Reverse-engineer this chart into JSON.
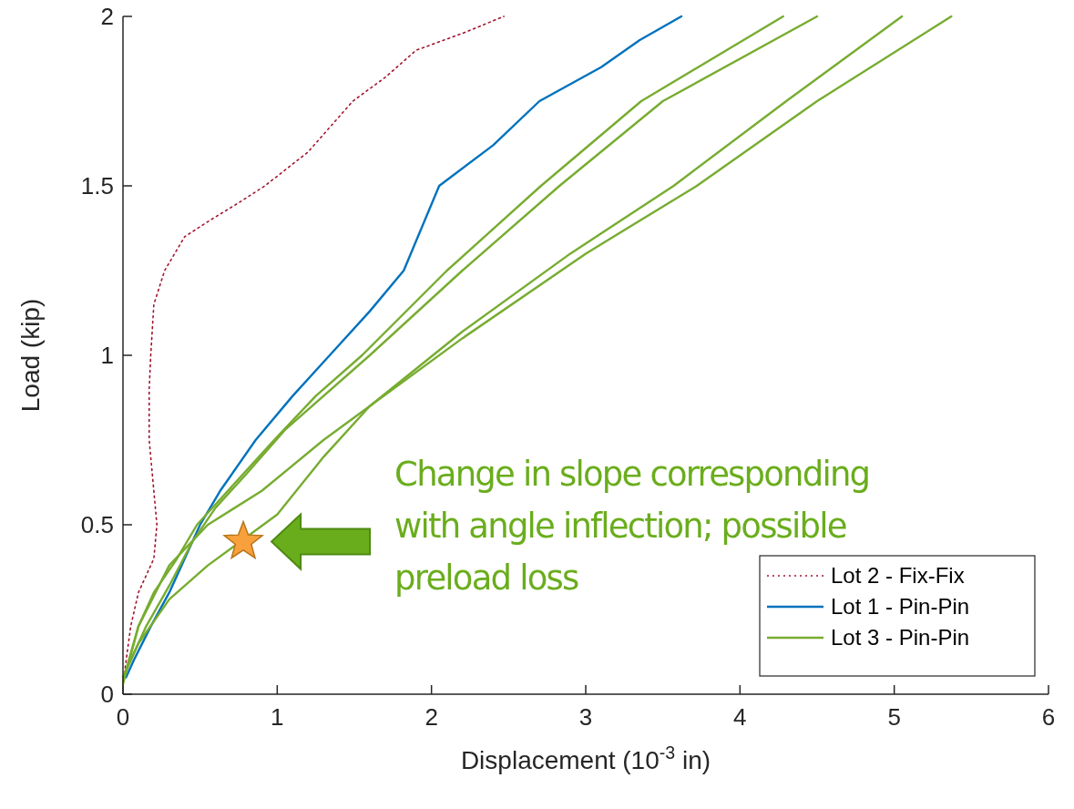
{
  "chart_data": {
    "type": "line",
    "xlabel": "Displacement (10$^{-3}$ in)",
    "ylabel": "Load (kip)",
    "xlim": [
      0,
      6
    ],
    "ylim": [
      0,
      2
    ],
    "xticks": [
      0,
      1,
      2,
      3,
      4,
      5,
      6
    ],
    "yticks": [
      0,
      0.5,
      1,
      1.5,
      2
    ],
    "grid": false,
    "legend": "bottom right",
    "series": [
      {
        "name": "Lot 2 - Fix-Fix",
        "color": "#a2142f",
        "line_style": "dotted",
        "x": [
          0,
          0.05,
          0.1,
          0.2,
          0.22,
          0.2,
          0.17,
          0.17,
          0.18,
          0.2,
          0.27,
          0.4,
          0.57,
          0.75,
          0.92,
          1.2,
          1.49,
          1.7,
          1.9,
          2.2,
          2.47
        ],
        "values": [
          0.03,
          0.2,
          0.3,
          0.4,
          0.5,
          0.6,
          0.75,
          0.9,
          1.0,
          1.15,
          1.25,
          1.35,
          1.4,
          1.45,
          1.5,
          1.6,
          1.75,
          1.82,
          1.9,
          1.95,
          2.0
        ]
      },
      {
        "name": "Lot 1 - Pin-Pin",
        "color": "#0072bd",
        "line_style": "solid",
        "x": [
          0.02,
          0.07,
          0.18,
          0.3,
          0.4,
          0.5,
          0.63,
          0.86,
          1.1,
          1.34,
          1.6,
          1.82,
          2.05,
          2.4,
          2.7,
          3.1,
          3.35,
          3.62
        ],
        "values": [
          0.05,
          0.1,
          0.2,
          0.3,
          0.4,
          0.5,
          0.6,
          0.75,
          0.88,
          1.0,
          1.13,
          1.25,
          1.5,
          1.62,
          1.75,
          1.85,
          1.93,
          2.0
        ]
      },
      {
        "name": "Lot 3 - Pin-Pin",
        "color": "#77ac30",
        "line_style": "solid",
        "x": [
          0,
          0.1,
          0.2,
          0.35,
          0.48,
          0.68,
          0.98,
          1.25,
          1.55,
          2.1,
          2.71,
          3.36,
          4.28
        ],
        "values": [
          0.04,
          0.2,
          0.3,
          0.4,
          0.5,
          0.6,
          0.75,
          0.88,
          1.0,
          1.25,
          1.5,
          1.75,
          2.0
        ]
      },
      {
        "color": "#77ac30",
        "line_style": "solid",
        "x": [
          0,
          0.15,
          0.3,
          0.45,
          0.6,
          0.8,
          1.05,
          1.6,
          2.2,
          2.83,
          3.5,
          4.5
        ],
        "values": [
          0.05,
          0.2,
          0.32,
          0.45,
          0.55,
          0.65,
          0.78,
          1.0,
          1.25,
          1.5,
          1.75,
          2.0
        ]
      },
      {
        "color": "#77ac30",
        "line_style": "solid",
        "x": [
          0,
          0.1,
          0.3,
          0.55,
          0.9,
          1.3,
          1.6,
          2.2,
          2.9,
          3.57,
          4.3,
          5.05
        ],
        "values": [
          0.03,
          0.2,
          0.38,
          0.5,
          0.6,
          0.75,
          0.85,
          1.07,
          1.3,
          1.5,
          1.75,
          2.0
        ]
      },
      {
        "color": "#77ac30",
        "line_style": "solid",
        "x": [
          0,
          0.1,
          0.3,
          0.55,
          1.0,
          1.3,
          1.6,
          2.2,
          3.0,
          3.72,
          4.5,
          5.37
        ],
        "values": [
          0.05,
          0.15,
          0.28,
          0.38,
          0.53,
          0.7,
          0.85,
          1.05,
          1.3,
          1.5,
          1.75,
          2.0
        ]
      },
      {
        "type": "scatter",
        "marker": "star",
        "color": "#f7a03c",
        "x": [
          0.78
        ],
        "values": [
          0.45
        ]
      }
    ],
    "annotations": [
      "Change in slope corresponding with angle inflection; possible preload loss"
    ]
  }
}
